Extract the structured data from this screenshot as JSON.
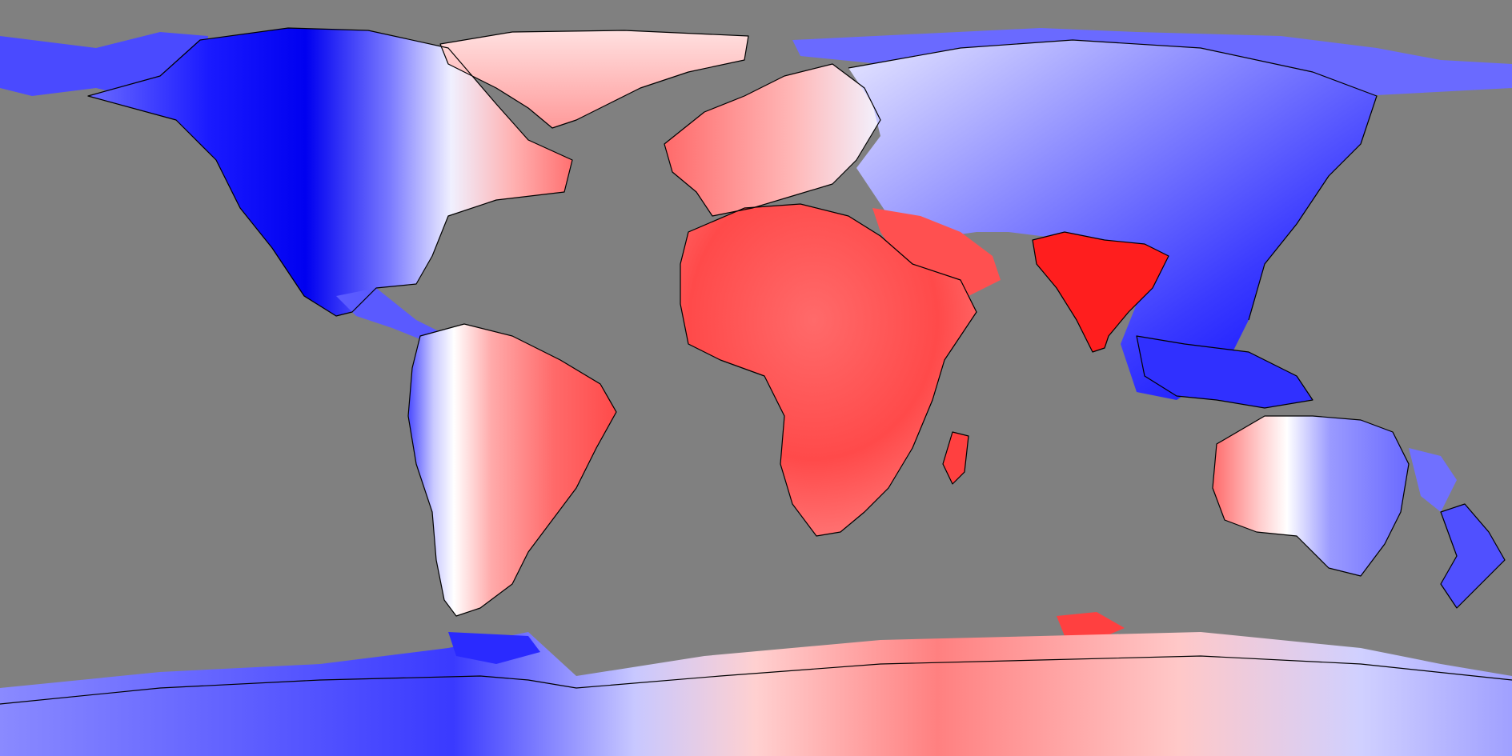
{
  "map": {
    "projection": "equirectangular",
    "ocean_color": "#808080",
    "coastline_color": "#000000",
    "colormap": {
      "cold": "#0000ff",
      "neutral": "#ffffff",
      "warm": "#ff0000"
    },
    "regions": [
      {
        "name": "north-america",
        "tone": "blue"
      },
      {
        "name": "greenland",
        "tone": "red"
      },
      {
        "name": "south-america",
        "tone": "red"
      },
      {
        "name": "europe",
        "tone": "red"
      },
      {
        "name": "africa",
        "tone": "red"
      },
      {
        "name": "india",
        "tone": "red"
      },
      {
        "name": "asia",
        "tone": "blue"
      },
      {
        "name": "southeast-asia",
        "tone": "blue"
      },
      {
        "name": "australia",
        "tone": "blue"
      },
      {
        "name": "new-zealand",
        "tone": "blue"
      },
      {
        "name": "madagascar",
        "tone": "red"
      },
      {
        "name": "antarctica",
        "tone": "mixed"
      }
    ]
  }
}
